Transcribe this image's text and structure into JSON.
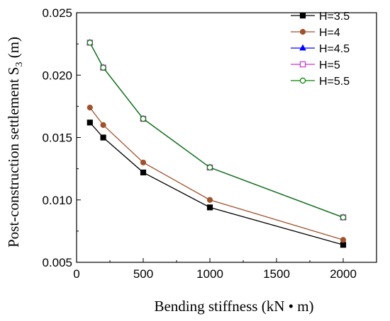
{
  "chart_data": {
    "type": "line",
    "title": "",
    "xlabel": "Bending stiffness (kN • m)",
    "ylabel_main": "Post-construction settlement S",
    "ylabel_sub": "3",
    "ylabel_unit": " (m)",
    "xlim": [
      0,
      2250
    ],
    "ylim": [
      0.005,
      0.025
    ],
    "xticks": [
      0,
      500,
      1000,
      1500,
      2000
    ],
    "xtick_labels": [
      "0",
      "500",
      "1000",
      "1500",
      "2000"
    ],
    "yticks": [
      0.005,
      0.01,
      0.015,
      0.02,
      0.025
    ],
    "ytick_labels": [
      "0.005",
      "0.010",
      "0.015",
      "0.020",
      "0.025"
    ],
    "grid": false,
    "legend_position": "top-right",
    "x": [
      100,
      200,
      500,
      1000,
      2000
    ],
    "series": [
      {
        "name": "H=3.5",
        "values": [
          0.0162,
          0.015,
          0.0122,
          0.0094,
          0.0064
        ],
        "color": "#000000",
        "marker": "square-filled"
      },
      {
        "name": "H=4",
        "values": [
          0.0174,
          0.016,
          0.013,
          0.01,
          0.0068
        ],
        "color": "#a0522d",
        "marker": "circle-filled"
      },
      {
        "name": "H=4.5",
        "values": [
          0.0226,
          0.0206,
          0.0165,
          0.0126,
          0.0086
        ],
        "color": "#0000ff",
        "marker": "triangle-filled"
      },
      {
        "name": "H=5",
        "values": [
          0.0226,
          0.0206,
          0.0165,
          0.0126,
          0.0086
        ],
        "color": "#cc33cc",
        "marker": "square-open"
      },
      {
        "name": "H=5.5",
        "values": [
          0.0226,
          0.0206,
          0.0165,
          0.0126,
          0.0086
        ],
        "color": "#008000",
        "marker": "circle-open"
      }
    ]
  }
}
